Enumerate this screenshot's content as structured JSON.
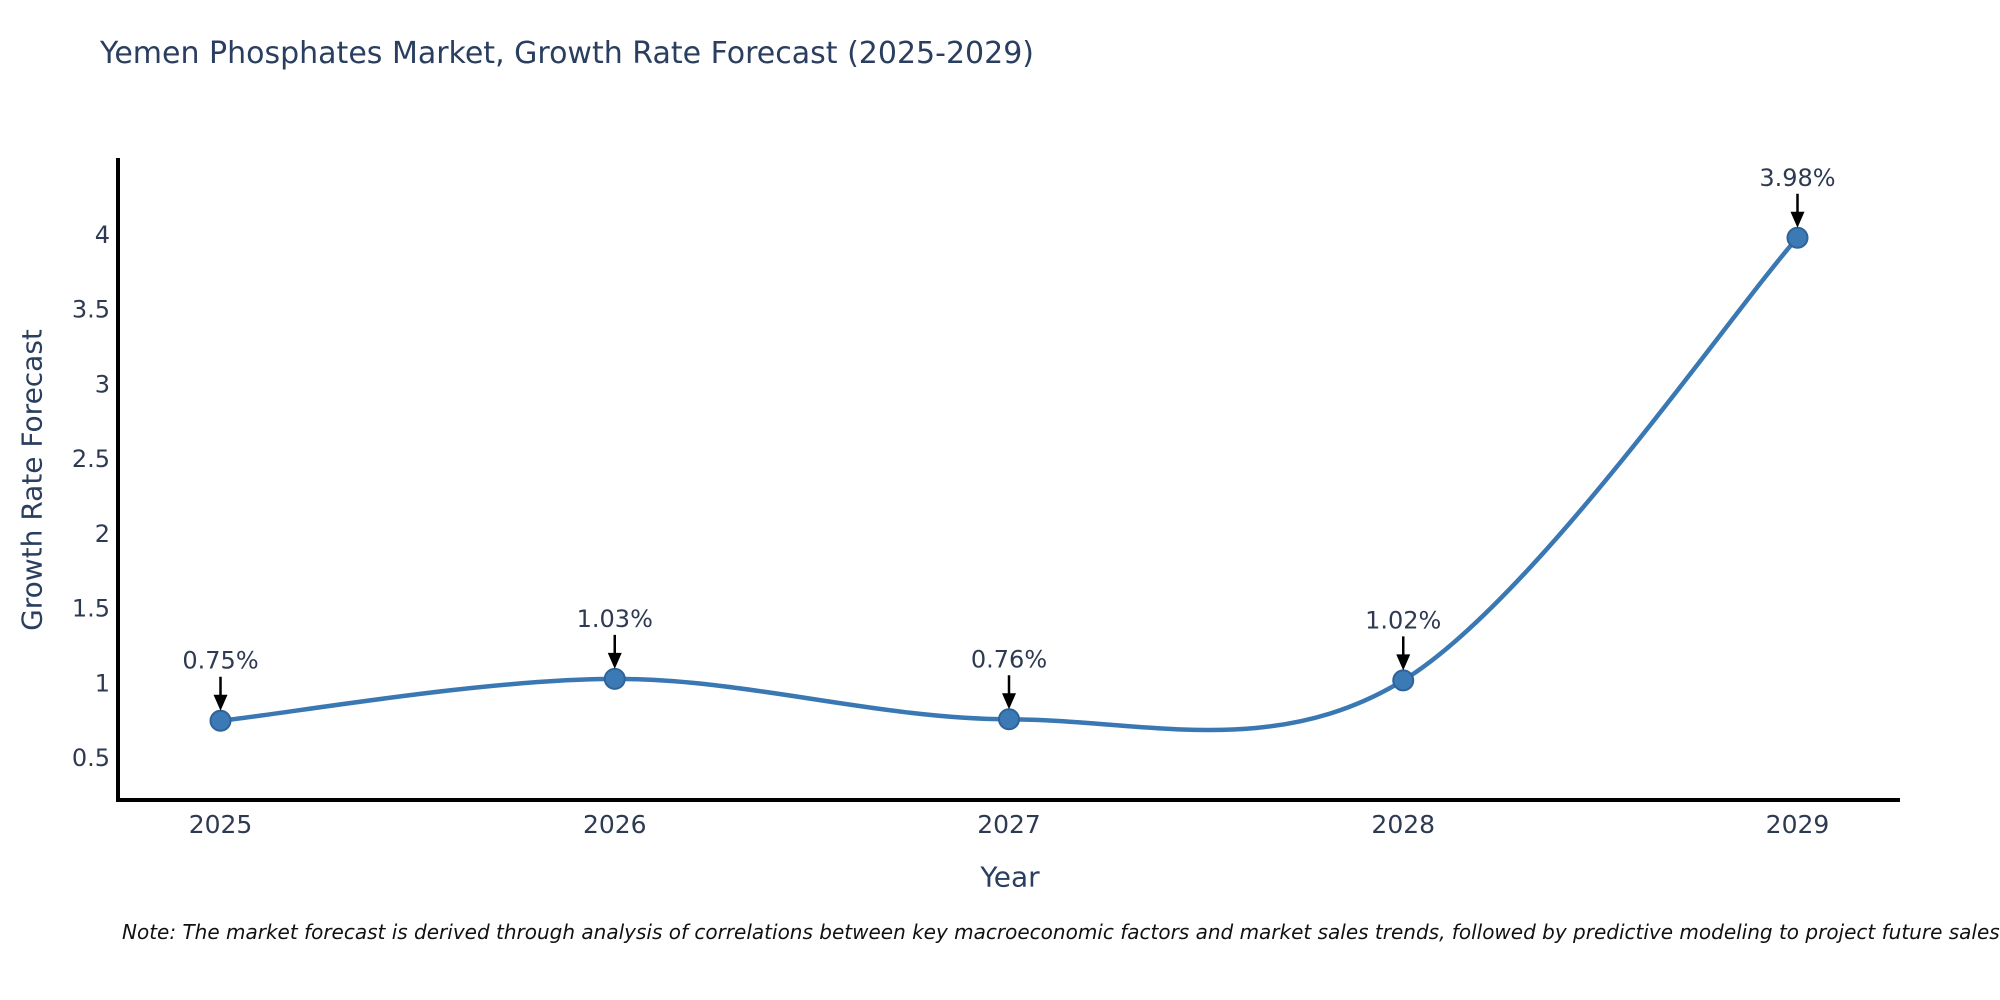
{
  "page": {
    "note": "Note: The market forecast is derived through analysis of correlations between key macroeconomic factors and market sales trends, followed by predictive modeling to project future sales"
  },
  "chart_data": {
    "type": "line",
    "title": "Yemen Phosphates Market, Growth Rate Forecast (2025-2029)",
    "xlabel": "Year",
    "ylabel": "Growth Rate Forecast",
    "x": [
      2025,
      2026,
      2027,
      2028,
      2029
    ],
    "values": [
      0.75,
      1.03,
      0.76,
      1.02,
      3.98
    ],
    "point_labels": [
      "0.75%",
      "1.03%",
      "0.76%",
      "1.02%",
      "3.98%"
    ],
    "xtick_labels": [
      "2025",
      "2026",
      "2027",
      "2028",
      "2029"
    ],
    "yticks": [
      0.5,
      1,
      1.5,
      2,
      2.5,
      3,
      3.5,
      4
    ],
    "ytick_labels": [
      "0.5",
      "1",
      "1.5",
      "2",
      "2.5",
      "3",
      "3.5",
      "4"
    ],
    "xlim": [
      2024.74,
      2029.26
    ],
    "ylim": [
      0.22,
      4.5
    ],
    "grid": false,
    "legend": false,
    "line_shape": "spline",
    "colors": {
      "line": "#3a78b3",
      "marker": "#3c7ab5",
      "marker_edge": "#2e6399",
      "axis": "#000000",
      "title_text": "#2a3f5f",
      "tick_text": "#2e3a52",
      "annotation_text": "#2e3a52",
      "arrow": "#000000",
      "note_text": "#111111",
      "background": "#ffffff"
    }
  }
}
